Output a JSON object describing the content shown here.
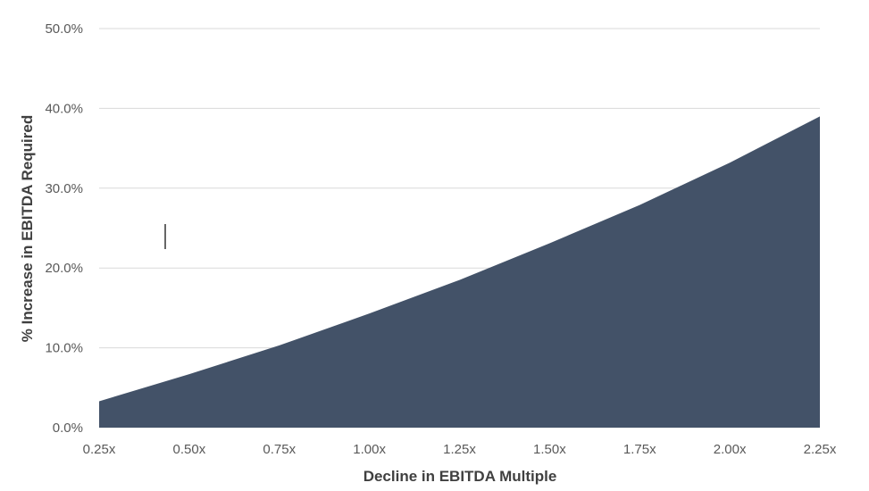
{
  "chart_data": {
    "type": "area",
    "title": "",
    "xlabel": "Decline in EBITDA Multiple",
    "ylabel": "% Increase in EBITDA Required",
    "x": [
      0.25,
      0.5,
      0.75,
      1.0,
      1.25,
      1.5,
      1.75,
      2.0,
      2.25
    ],
    "x_tick_labels": [
      "0.25x",
      "0.50x",
      "0.75x",
      "1.00x",
      "1.25x",
      "1.50x",
      "1.75x",
      "2.00x",
      "2.25x"
    ],
    "series": [
      {
        "values": [
          3.3,
          6.7,
          10.3,
          14.3,
          18.5,
          23.1,
          27.9,
          33.2,
          39.0
        ]
      }
    ],
    "y_ticks": [
      0,
      10,
      20,
      30,
      40,
      50
    ],
    "y_tick_labels": [
      "0.0%",
      "10.0%",
      "20.0%",
      "30.0%",
      "40.0%",
      "50.0%"
    ],
    "ylim": [
      0,
      50
    ],
    "xlim": [
      0.25,
      2.25
    ],
    "grid": "horizontal",
    "legend": "none",
    "area_color": "#435268",
    "grid_color": "#d9d9d9"
  }
}
